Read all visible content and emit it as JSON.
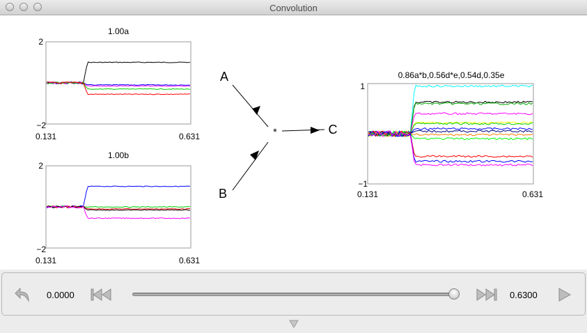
{
  "window": {
    "title": "Convolution"
  },
  "plots": {
    "a": {
      "title": "1.00a",
      "ymax_label": "2",
      "ymin_label": "−2",
      "xmin_label": "0.131",
      "xmax_label": "0.631"
    },
    "b": {
      "title": "1.00b",
      "ymax_label": "2",
      "ymin_label": "−2",
      "xmin_label": "0.131",
      "xmax_label": "0.631"
    },
    "c": {
      "title": "0.86a*b,0.56d*e,0.54d,0.35e",
      "ymax_label": "1",
      "ymin_label": "−1",
      "xmin_label": "0.131",
      "xmax_label": "0.631"
    }
  },
  "diagram": {
    "input_a": "A",
    "input_b": "B",
    "operator": "*",
    "output": "C"
  },
  "chart_data": [
    {
      "type": "line",
      "title": "1.00a",
      "xlim": [
        0.131,
        0.631
      ],
      "ylim": [
        -2,
        2
      ],
      "step_x": 0.26,
      "series": [
        {
          "color": "#000000",
          "before": 0.0,
          "after": 1.0
        },
        {
          "color": "#0000ff",
          "before": 0.0,
          "after": -0.1
        },
        {
          "color": "#ff00ff",
          "before": 0.0,
          "after": -0.15
        },
        {
          "color": "#00cc00",
          "before": 0.0,
          "after": -0.3
        },
        {
          "color": "#ff0000",
          "before": 0.0,
          "after": -0.55
        }
      ]
    },
    {
      "type": "line",
      "title": "1.00b",
      "xlim": [
        0.131,
        0.631
      ],
      "ylim": [
        -2,
        2
      ],
      "step_x": 0.26,
      "series": [
        {
          "color": "#0000ff",
          "before": 0.0,
          "after": 1.0
        },
        {
          "color": "#00cc00",
          "before": 0.0,
          "after": 0.0
        },
        {
          "color": "#ff0000",
          "before": 0.0,
          "after": -0.1
        },
        {
          "color": "#000000",
          "before": 0.0,
          "after": -0.15
        },
        {
          "color": "#ff00ff",
          "before": 0.0,
          "after": -0.55
        }
      ]
    },
    {
      "type": "line",
      "title": "0.86a*b,0.56d*e,0.54d,0.35e",
      "xlim": [
        0.131,
        0.631
      ],
      "ylim": [
        -1,
        1
      ],
      "step_x": 0.26,
      "series": [
        {
          "color": "#00ffff",
          "before": 0.0,
          "after": 0.95
        },
        {
          "color": "#000000",
          "before": 0.0,
          "after": 0.63
        },
        {
          "color": "#00aa00",
          "before": 0.0,
          "after": 0.6
        },
        {
          "color": "#ff00ff",
          "before": 0.0,
          "after": 0.4
        },
        {
          "color": "#ffff00",
          "before": 0.0,
          "after": 0.22
        },
        {
          "color": "#00cc00",
          "before": 0.0,
          "after": 0.2
        },
        {
          "color": "#0000ff",
          "before": 0.0,
          "after": 0.1
        },
        {
          "color": "#000080",
          "before": 0.0,
          "after": 0.05
        },
        {
          "color": "#ff8000",
          "before": 0.0,
          "after": -0.02
        },
        {
          "color": "#00ff00",
          "before": 0.0,
          "after": -0.1
        },
        {
          "color": "#ff0000",
          "before": 0.0,
          "after": -0.45
        },
        {
          "color": "#0000ff",
          "before": 0.0,
          "after": -0.55
        },
        {
          "color": "#ff00ff",
          "before": 0.0,
          "after": -0.62
        }
      ]
    }
  ],
  "controls": {
    "time_start": "0.0000",
    "time_end": "0.6300",
    "slider_fraction": 1.0,
    "icons": {
      "rewind": "undo-arrow-icon",
      "skip_back": "skip-back-icon",
      "skip_forward": "skip-forward-icon",
      "play": "play-icon",
      "collapse": "triangle-down-icon"
    }
  }
}
